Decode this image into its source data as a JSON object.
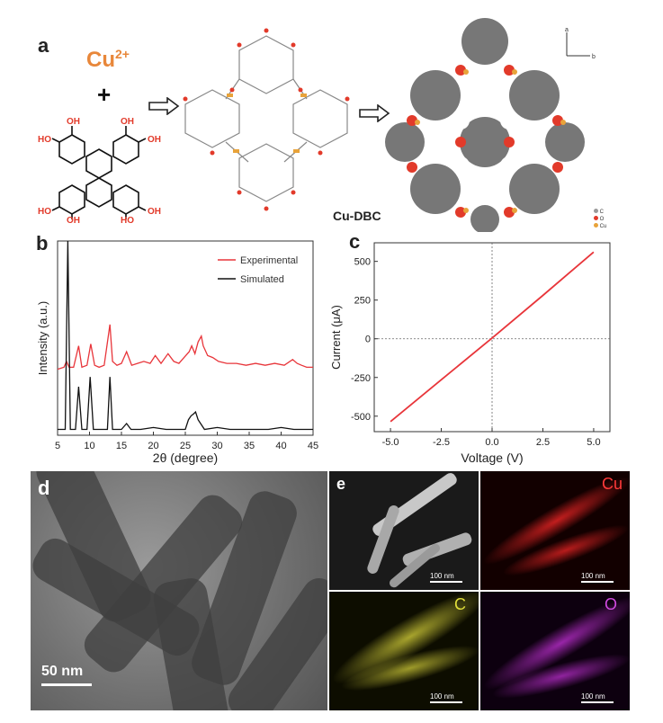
{
  "panel_labels": {
    "a": "a",
    "b": "b",
    "c": "c",
    "d": "d",
    "e": "e"
  },
  "panel_a": {
    "ion_label": "Cu",
    "ion_charge": "2+",
    "plus": "+",
    "ligand_groups": [
      "OH",
      "OH",
      "HO",
      "OH",
      "HO",
      "OH",
      "OH",
      "HO"
    ],
    "framework_label": "Cu-DBC",
    "axes": {
      "a": "a",
      "b": "b"
    },
    "legend": [
      {
        "symbol": "C",
        "color": "#9a9a9a"
      },
      {
        "symbol": "O",
        "color": "#e23a2a"
      },
      {
        "symbol": "Cu",
        "color": "#e8a33a"
      }
    ],
    "colors": {
      "ion": "#e8873a",
      "ligand_oh": "#e23a2a",
      "bond": "#111111"
    }
  },
  "chart_data": [
    {
      "type": "line",
      "panel": "b",
      "xlabel": "2θ (degree)",
      "ylabel": "Intensity (a.u.)",
      "xlim": [
        5,
        45
      ],
      "xticks": [
        5,
        10,
        15,
        20,
        25,
        30,
        35,
        40,
        45
      ],
      "legend_position": "top-right",
      "series": [
        {
          "name": "Experimental",
          "color": "#e8353a",
          "x": [
            5,
            6,
            6.4,
            6.8,
            7.5,
            8.3,
            8.8,
            9.6,
            10.2,
            10.8,
            11.5,
            12.3,
            13.2,
            13.6,
            14.3,
            15,
            15.8,
            16.6,
            17.5,
            18.5,
            19.5,
            20.3,
            21.2,
            22.3,
            23.2,
            24,
            24.8,
            25.6,
            26,
            26.5,
            27,
            27.5,
            27.8,
            28.5,
            29.3,
            30.2,
            31.5,
            33,
            34.5,
            36,
            37.5,
            39,
            40.5,
            41.8,
            42.5,
            43.2,
            44,
            45
          ],
          "y": [
            0.34,
            0.35,
            0.38,
            0.35,
            0.35,
            0.46,
            0.35,
            0.36,
            0.47,
            0.36,
            0.35,
            0.36,
            0.57,
            0.38,
            0.36,
            0.37,
            0.43,
            0.36,
            0.37,
            0.38,
            0.37,
            0.41,
            0.37,
            0.42,
            0.38,
            0.37,
            0.4,
            0.43,
            0.46,
            0.42,
            0.48,
            0.51,
            0.46,
            0.41,
            0.4,
            0.38,
            0.37,
            0.37,
            0.36,
            0.37,
            0.36,
            0.37,
            0.36,
            0.39,
            0.37,
            0.36,
            0.35,
            0.35
          ]
        },
        {
          "name": "Simulated",
          "color": "#111111",
          "x": [
            5,
            6.2,
            6.6,
            7,
            7.8,
            8.3,
            8.8,
            9.6,
            10.1,
            10.6,
            11.5,
            12.8,
            13.2,
            13.6,
            15,
            15.8,
            16.5,
            18,
            20,
            22,
            24,
            25,
            25.5,
            25.9,
            26.3,
            26.6,
            27,
            28,
            30,
            32,
            35,
            38,
            40,
            42,
            45
          ],
          "y": [
            0.03,
            0.03,
            1.0,
            0.03,
            0.03,
            0.25,
            0.03,
            0.03,
            0.3,
            0.03,
            0.03,
            0.03,
            0.3,
            0.03,
            0.03,
            0.06,
            0.03,
            0.03,
            0.04,
            0.03,
            0.03,
            0.03,
            0.08,
            0.1,
            0.11,
            0.12,
            0.08,
            0.03,
            0.04,
            0.03,
            0.03,
            0.03,
            0.04,
            0.03,
            0.03
          ]
        }
      ]
    },
    {
      "type": "line",
      "panel": "c",
      "xlabel": "Voltage (V)",
      "ylabel": "Current (μA)",
      "xlim": [
        -5.8,
        5.8
      ],
      "ylim": [
        -600,
        620
      ],
      "xticks": [
        -5.0,
        -2.5,
        0.0,
        2.5,
        5.0
      ],
      "yticks": [
        -500,
        -250,
        0,
        250,
        500
      ],
      "reference_lines": {
        "x": 0,
        "y": 0
      },
      "series": [
        {
          "color": "#e8353a",
          "x": [
            -5.0,
            -2.5,
            0.0,
            2.5,
            5.0
          ],
          "y": [
            -535,
            -265,
            5,
            280,
            560
          ]
        }
      ]
    }
  ],
  "panel_d": {
    "scale_bar": "50 nm"
  },
  "panel_e": {
    "maps": [
      {
        "label": "",
        "scale": "100 nm",
        "color": "#bdbdbd"
      },
      {
        "label": "Cu",
        "scale": "100 nm",
        "color": "#ff2a2a"
      },
      {
        "label": "C",
        "scale": "100 nm",
        "color": "#d4d22a"
      },
      {
        "label": "O",
        "scale": "100 nm",
        "color": "#c02ad0"
      }
    ]
  }
}
